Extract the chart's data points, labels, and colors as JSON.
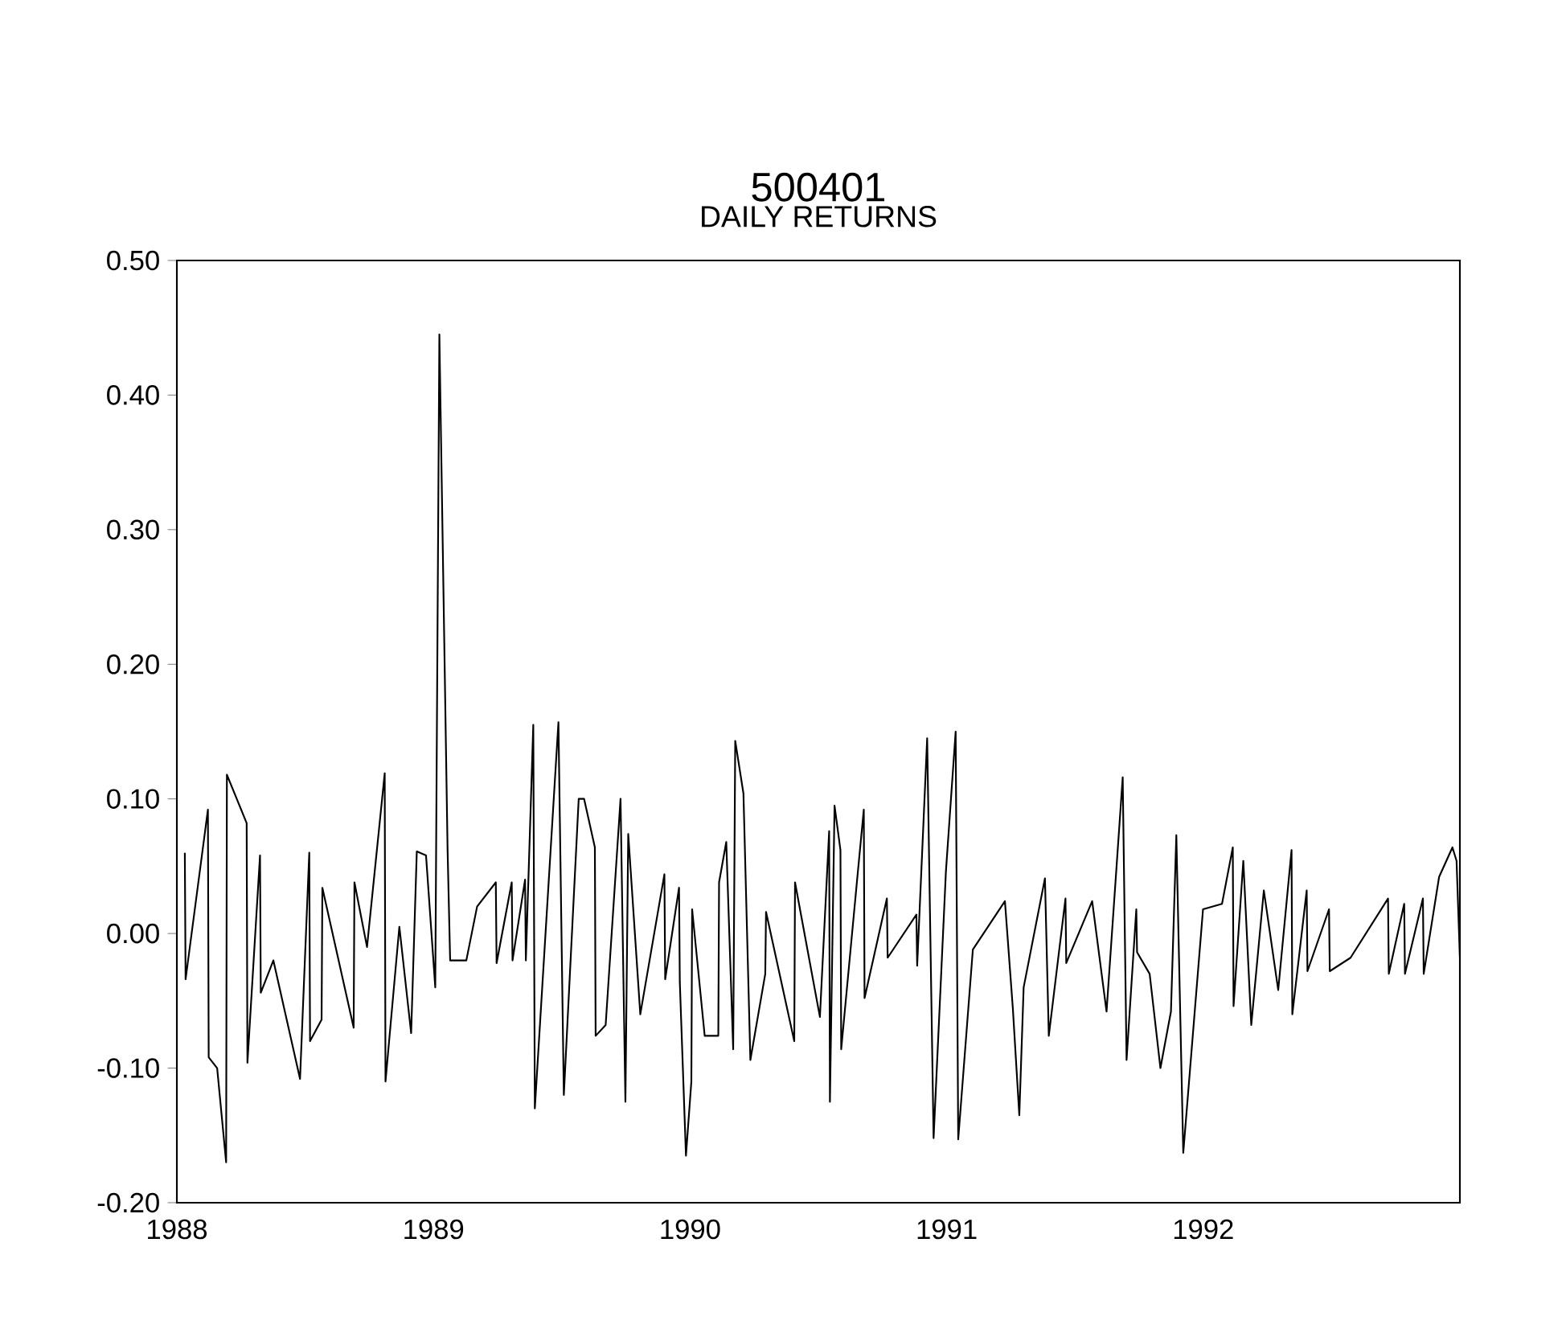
{
  "chart_data": {
    "type": "line",
    "title": "500401",
    "subtitle": "DAILY RETURNS",
    "x": [
      1988.031,
      1988.034,
      1988.121,
      1988.124,
      1988.157,
      1988.192,
      1988.195,
      1988.272,
      1988.275,
      1988.324,
      1988.327,
      1988.376,
      1988.48,
      1988.516,
      1988.519,
      1988.564,
      1988.567,
      1988.689,
      1988.692,
      1988.741,
      1988.81,
      1988.813,
      1988.867,
      1988.913,
      1988.935,
      1988.971,
      1989.007,
      1989.023,
      1989.055,
      1989.065,
      1989.128,
      1989.17,
      1989.243,
      1989.246,
      1989.305,
      1989.308,
      1989.357,
      1989.36,
      1989.389,
      1989.395,
      1989.487,
      1989.508,
      1989.566,
      1989.587,
      1989.629,
      1989.632,
      1989.671,
      1989.729,
      1989.748,
      1989.759,
      1989.806,
      1989.9,
      1989.903,
      1989.957,
      1989.96,
      1989.984,
      1990.005,
      1990.008,
      1990.057,
      1990.11,
      1990.113,
      1990.141,
      1990.168,
      1990.176,
      1990.208,
      1990.235,
      1990.293,
      1990.296,
      1990.406,
      1990.409,
      1990.506,
      1990.542,
      1990.545,
      1990.563,
      1990.586,
      1990.589,
      1990.652,
      1990.677,
      1990.68,
      1990.767,
      1990.77,
      1990.882,
      1990.885,
      1990.924,
      1990.949,
      1990.997,
      1991.035,
      1991.045,
      1991.102,
      1991.227,
      1991.258,
      1991.283,
      1991.3,
      1991.383,
      1991.398,
      1991.463,
      1991.466,
      1991.567,
      1991.623,
      1991.686,
      1991.701,
      1991.739,
      1991.742,
      1991.791,
      1991.833,
      1991.874,
      1991.895,
      1991.922,
      1991.999,
      1992.073,
      1992.115,
      1992.118,
      1992.156,
      1992.187,
      1992.236,
      1992.292,
      1992.344,
      1992.347,
      1992.403,
      1992.406,
      1992.49,
      1992.493,
      1992.574,
      1992.72,
      1992.723,
      1992.783,
      1992.786,
      1992.856,
      1992.859,
      1992.919,
      1992.971,
      1992.987,
      1993.0
    ],
    "series": [
      {
        "color": "#000000",
        "values": [
          0.06,
          -0.034,
          0.092,
          -0.092,
          -0.1,
          -0.17,
          0.118,
          0.082,
          -0.096,
          0.058,
          -0.044,
          -0.02,
          -0.108,
          0.06,
          -0.08,
          -0.064,
          0.034,
          -0.07,
          0.038,
          -0.01,
          0.119,
          -0.11,
          0.005,
          -0.074,
          0.061,
          0.058,
          -0.04,
          0.445,
          0.062,
          -0.02,
          -0.02,
          0.02,
          0.038,
          -0.022,
          0.038,
          -0.02,
          0.04,
          -0.02,
          0.155,
          -0.13,
          0.157,
          -0.12,
          0.1,
          0.1,
          0.064,
          -0.076,
          -0.068,
          0.1,
          -0.125,
          0.074,
          -0.06,
          0.044,
          -0.034,
          0.034,
          -0.036,
          -0.165,
          -0.11,
          0.018,
          -0.076,
          -0.076,
          0.038,
          0.068,
          -0.086,
          0.143,
          0.104,
          -0.094,
          -0.03,
          0.016,
          -0.08,
          0.038,
          -0.062,
          0.076,
          -0.125,
          0.095,
          0.062,
          -0.086,
          0.042,
          0.092,
          -0.048,
          0.026,
          -0.018,
          0.014,
          -0.024,
          0.145,
          -0.152,
          0.046,
          0.15,
          -0.153,
          -0.012,
          0.024,
          -0.056,
          -0.135,
          -0.04,
          0.041,
          -0.076,
          0.026,
          -0.022,
          0.024,
          -0.058,
          0.116,
          -0.094,
          0.018,
          -0.014,
          -0.03,
          -0.1,
          -0.058,
          0.073,
          -0.163,
          0.018,
          0.022,
          0.064,
          -0.054,
          0.054,
          -0.068,
          0.032,
          -0.042,
          0.062,
          -0.06,
          0.032,
          -0.028,
          0.018,
          -0.028,
          -0.018,
          0.026,
          -0.03,
          0.022,
          -0.03,
          0.026,
          -0.03,
          0.042,
          0.064,
          0.054,
          -0.018
        ]
      }
    ],
    "xlim": [
      1988,
      1993
    ],
    "xticks": [
      1988,
      1989,
      1990,
      1991,
      1992
    ],
    "ylim": [
      -0.2,
      0.5
    ],
    "yticks": [
      {
        "value": -0.2,
        "label": "-0.20"
      },
      {
        "value": -0.1,
        "label": "-0.10"
      },
      {
        "value": 0.0,
        "label": "0.00"
      },
      {
        "value": 0.1,
        "label": "0.10"
      },
      {
        "value": 0.2,
        "label": "0.20"
      },
      {
        "value": 0.3,
        "label": "0.30"
      },
      {
        "value": 0.4,
        "label": "0.40"
      },
      {
        "value": 0.5,
        "label": "0.50"
      }
    ]
  }
}
